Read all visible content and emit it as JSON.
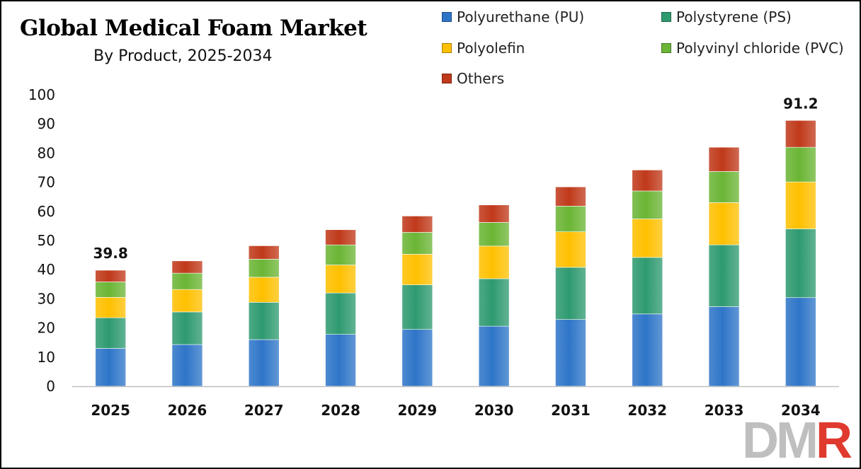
{
  "chart_data": {
    "type": "bar",
    "stacked": true,
    "title": "Global Medical Foam Market",
    "subtitle": "By Product, 2025-2034",
    "categories": [
      "2025",
      "2026",
      "2027",
      "2028",
      "2029",
      "2030",
      "2031",
      "2032",
      "2033",
      "2034"
    ],
    "series": [
      {
        "name": "Polyurethane (PU)",
        "color": "#2e75c8",
        "values": [
          13.0,
          14.3,
          16.0,
          17.8,
          19.5,
          20.6,
          22.9,
          24.8,
          27.3,
          30.4
        ]
      },
      {
        "name": "Polystyrene (PS)",
        "color": "#2e9a70",
        "values": [
          10.5,
          11.2,
          12.8,
          14.2,
          15.3,
          16.3,
          17.9,
          19.4,
          21.2,
          23.6
        ]
      },
      {
        "name": "Polyolefin",
        "color": "#ffc000",
        "values": [
          7.0,
          7.7,
          8.6,
          9.6,
          10.5,
          11.2,
          12.2,
          13.2,
          14.5,
          16.1
        ]
      },
      {
        "name": "Polyvinyl chloride (PVC)",
        "color": "#6bb535",
        "values": [
          5.3,
          5.6,
          6.2,
          6.9,
          7.5,
          8.1,
          8.8,
          9.6,
          10.7,
          11.9
        ]
      },
      {
        "name": "Others",
        "color": "#c0391a",
        "values": [
          4.0,
          4.2,
          4.6,
          5.2,
          5.6,
          6.0,
          6.6,
          7.2,
          8.3,
          9.2
        ]
      }
    ],
    "totals": {
      "2025": "39.8",
      "2034": "91.2"
    },
    "ylim": [
      0,
      100
    ],
    "yticks": [
      0,
      10,
      20,
      30,
      40,
      50,
      60,
      70,
      80,
      90,
      100
    ],
    "xlabel": "",
    "ylabel": "",
    "grid": false,
    "legend_position": "top-right"
  },
  "watermark": {
    "text_main": "DM",
    "text_accent": "R"
  }
}
